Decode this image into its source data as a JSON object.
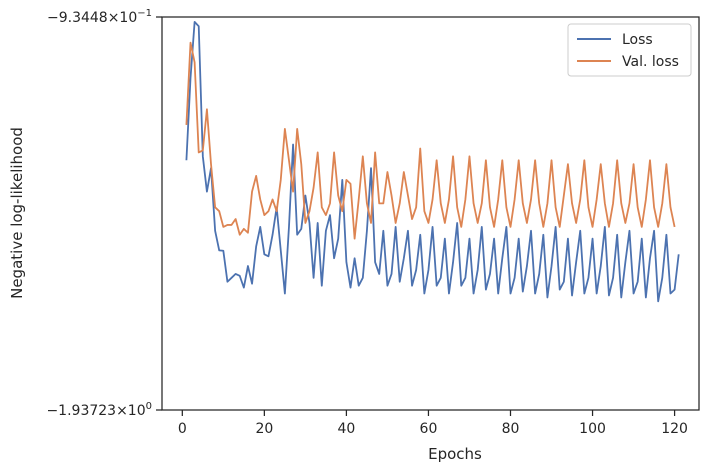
{
  "chart_data": {
    "type": "line",
    "xlabel": "Epochs",
    "ylabel": "Negative log-likelihood",
    "xlim": [
      -4.95,
      125.95
    ],
    "x_ticks": [
      0,
      20,
      40,
      60,
      80,
      100,
      120
    ],
    "y_scale": "symlog",
    "y_tick_labels": {
      "top": "−9.3448×10",
      "top_exp": "−1",
      "bottom": "−1.93723×10",
      "bottom_exp": "0"
    },
    "ylim": [
      -1.93723,
      -0.93448
    ],
    "legend": {
      "position": "top-right"
    },
    "grid": false,
    "series": [
      {
        "name": "Loss",
        "color": "#4c72b0",
        "values": [
          -1.3,
          -1.09,
          -0.947,
          -0.958,
          -1.29,
          -1.38,
          -1.32,
          -1.48,
          -1.53,
          -1.531,
          -1.61,
          -1.6,
          -1.59,
          -1.595,
          -1.625,
          -1.57,
          -1.615,
          -1.52,
          -1.47,
          -1.54,
          -1.545,
          -1.49,
          -1.42,
          -1.53,
          -1.64,
          -1.47,
          -1.26,
          -1.49,
          -1.475,
          -1.39,
          -1.46,
          -1.6,
          -1.46,
          -1.62,
          -1.48,
          -1.44,
          -1.55,
          -1.5,
          -1.35,
          -1.56,
          -1.625,
          -1.55,
          -1.62,
          -1.6,
          -1.48,
          -1.32,
          -1.56,
          -1.59,
          -1.48,
          -1.62,
          -1.59,
          -1.47,
          -1.61,
          -1.55,
          -1.48,
          -1.62,
          -1.58,
          -1.49,
          -1.64,
          -1.58,
          -1.47,
          -1.62,
          -1.6,
          -1.5,
          -1.64,
          -1.56,
          -1.46,
          -1.62,
          -1.6,
          -1.5,
          -1.64,
          -1.58,
          -1.47,
          -1.63,
          -1.59,
          -1.5,
          -1.64,
          -1.55,
          -1.47,
          -1.64,
          -1.6,
          -1.5,
          -1.635,
          -1.57,
          -1.48,
          -1.64,
          -1.59,
          -1.49,
          -1.65,
          -1.57,
          -1.47,
          -1.63,
          -1.61,
          -1.5,
          -1.645,
          -1.56,
          -1.48,
          -1.64,
          -1.6,
          -1.5,
          -1.64,
          -1.57,
          -1.47,
          -1.645,
          -1.6,
          -1.49,
          -1.65,
          -1.56,
          -1.48,
          -1.64,
          -1.61,
          -1.5,
          -1.65,
          -1.55,
          -1.48,
          -1.66,
          -1.6,
          -1.49,
          -1.64,
          -1.63,
          -1.54
        ]
      },
      {
        "name": "Val. loss",
        "color": "#dd8452",
        "values": [
          -1.21,
          -1.0,
          -1.05,
          -1.28,
          -1.275,
          -1.17,
          -1.31,
          -1.42,
          -1.43,
          -1.47,
          -1.465,
          -1.465,
          -1.45,
          -1.49,
          -1.475,
          -1.485,
          -1.38,
          -1.34,
          -1.4,
          -1.44,
          -1.43,
          -1.4,
          -1.43,
          -1.35,
          -1.22,
          -1.3,
          -1.38,
          -1.22,
          -1.31,
          -1.46,
          -1.43,
          -1.37,
          -1.28,
          -1.42,
          -1.44,
          -1.41,
          -1.28,
          -1.39,
          -1.43,
          -1.35,
          -1.36,
          -1.5,
          -1.4,
          -1.29,
          -1.41,
          -1.46,
          -1.28,
          -1.41,
          -1.41,
          -1.33,
          -1.39,
          -1.46,
          -1.41,
          -1.33,
          -1.39,
          -1.45,
          -1.42,
          -1.27,
          -1.43,
          -1.46,
          -1.4,
          -1.3,
          -1.41,
          -1.46,
          -1.4,
          -1.29,
          -1.42,
          -1.47,
          -1.4,
          -1.29,
          -1.41,
          -1.46,
          -1.41,
          -1.3,
          -1.42,
          -1.47,
          -1.4,
          -1.3,
          -1.42,
          -1.47,
          -1.4,
          -1.3,
          -1.41,
          -1.46,
          -1.4,
          -1.3,
          -1.41,
          -1.47,
          -1.41,
          -1.3,
          -1.42,
          -1.47,
          -1.39,
          -1.31,
          -1.41,
          -1.46,
          -1.4,
          -1.3,
          -1.42,
          -1.47,
          -1.4,
          -1.31,
          -1.41,
          -1.47,
          -1.41,
          -1.3,
          -1.41,
          -1.46,
          -1.41,
          -1.31,
          -1.42,
          -1.47,
          -1.4,
          -1.3,
          -1.42,
          -1.47,
          -1.41,
          -1.31,
          -1.42,
          -1.47
        ]
      }
    ]
  }
}
